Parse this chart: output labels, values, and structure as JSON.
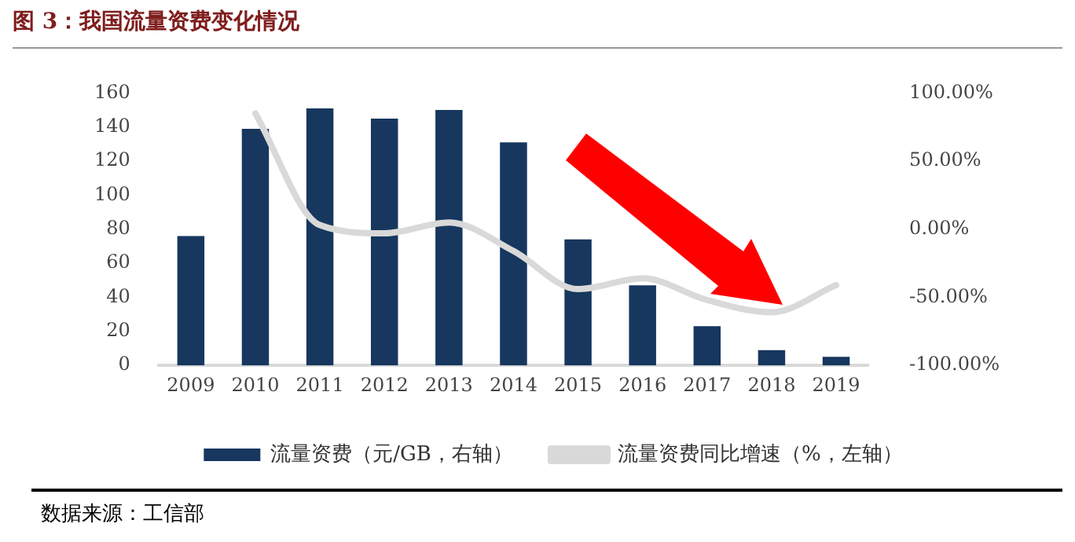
{
  "chart_data": {
    "type": "bar",
    "title": "图 3：我国流量资费变化情况",
    "categories": [
      "2009",
      "2010",
      "2011",
      "2012",
      "2013",
      "2014",
      "2015",
      "2016",
      "2017",
      "2018",
      "2019"
    ],
    "series": [
      {
        "name": "流量资费（元/GB，右轴）",
        "color": "#17375e",
        "values": [
          76,
          139,
          151,
          145,
          150,
          131,
          74,
          47,
          23,
          9,
          5
        ]
      },
      {
        "name": "流量资费同比增速（%，左轴）",
        "type": "line",
        "axis": "y2",
        "color": "#d9d9d9",
        "values": [
          null,
          85,
          3,
          -3,
          5,
          -16,
          -44,
          -36,
          -52,
          -61,
          -41
        ]
      }
    ],
    "ylim": [
      0,
      160
    ],
    "yticks": [
      0,
      20,
      40,
      60,
      80,
      100,
      120,
      140,
      160
    ],
    "y2lim": [
      -100,
      100
    ],
    "y2ticks": [
      {
        "value": -100,
        "label": "-100.00%"
      },
      {
        "value": -50,
        "label": "-50.00%"
      },
      {
        "value": 0,
        "label": "0.00%"
      },
      {
        "value": 50,
        "label": "50.00%"
      },
      {
        "value": 100,
        "label": "100.00%"
      }
    ],
    "grid": false,
    "legend": "bottom",
    "marker": "none",
    "line_style": "solid",
    "annotations": [
      "数据来源：工信部"
    ]
  }
}
